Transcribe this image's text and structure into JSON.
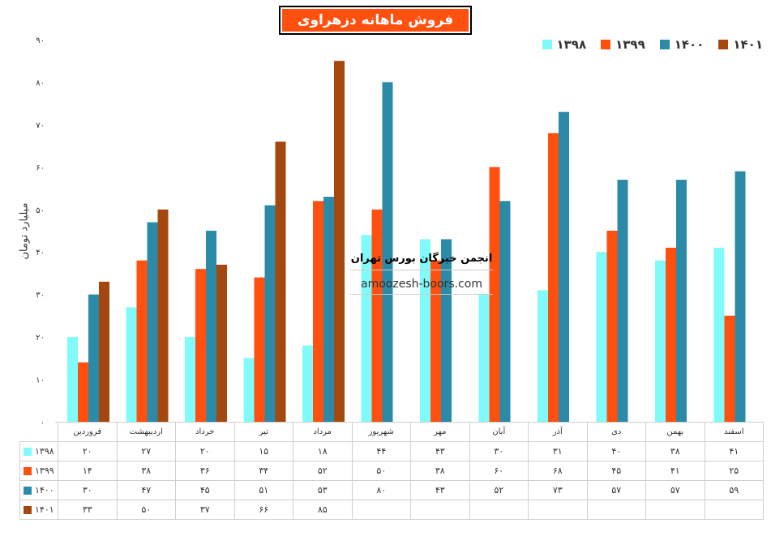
{
  "chart_data": {
    "type": "bar",
    "title": "فروش ماهانه دزهراوی",
    "ylabel": "میلیارد تومان",
    "xlabel": "",
    "ylim": [
      0,
      90
    ],
    "yticks": [
      0,
      10,
      20,
      30,
      40,
      50,
      60,
      70,
      80,
      90
    ],
    "ytick_labels": [
      "۰",
      "۱۰",
      "۲۰",
      "۳۰",
      "۴۰",
      "۵۰",
      "۶۰",
      "۷۰",
      "۸۰",
      "۹۰"
    ],
    "categories": [
      "فروردین",
      "اردیبهشت",
      "خرداد",
      "تیر",
      "مرداد",
      "شهریور",
      "مهر",
      "آبان",
      "آذر",
      "دی",
      "بهمن",
      "اسفند"
    ],
    "legend_position": "top-right",
    "series": [
      {
        "name": "۱۳۹۸",
        "color": "#80fafa",
        "values": [
          20,
          27,
          20,
          15,
          18,
          44,
          43,
          30,
          31,
          40,
          38,
          41
        ],
        "labels": [
          "۲۰",
          "۲۷",
          "۲۰",
          "۱۵",
          "۱۸",
          "۴۴",
          "۴۳",
          "۳۰",
          "۳۱",
          "۴۰",
          "۳۸",
          "۴۱"
        ]
      },
      {
        "name": "۱۳۹۹",
        "color": "#ff5010",
        "values": [
          14,
          38,
          36,
          34,
          52,
          50,
          38,
          60,
          68,
          45,
          41,
          25
        ],
        "labels": [
          "۱۴",
          "۳۸",
          "۳۶",
          "۳۴",
          "۵۲",
          "۵۰",
          "۳۸",
          "۶۰",
          "۶۸",
          "۴۵",
          "۴۱",
          "۲۵"
        ]
      },
      {
        "name": "۱۴۰۰",
        "color": "#2a8aa8",
        "values": [
          30,
          47,
          45,
          51,
          53,
          80,
          43,
          52,
          73,
          57,
          57,
          59
        ],
        "labels": [
          "۳۰",
          "۴۷",
          "۴۵",
          "۵۱",
          "۵۳",
          "۸۰",
          "۴۳",
          "۵۲",
          "۷۳",
          "۵۷",
          "۵۷",
          "۵۹"
        ]
      },
      {
        "name": "۱۴۰۱",
        "color": "#a5480f",
        "values": [
          33,
          50,
          37,
          66,
          85,
          null,
          null,
          null,
          null,
          null,
          null,
          null
        ],
        "labels": [
          "۳۳",
          "۵۰",
          "۳۷",
          "۶۶",
          "۸۵",
          "",
          "",
          "",
          "",
          "",
          "",
          ""
        ]
      }
    ]
  },
  "watermark": {
    "line1": "انجمن خبرگان بورس تهران",
    "line2": "amoozesh-boors.com"
  }
}
